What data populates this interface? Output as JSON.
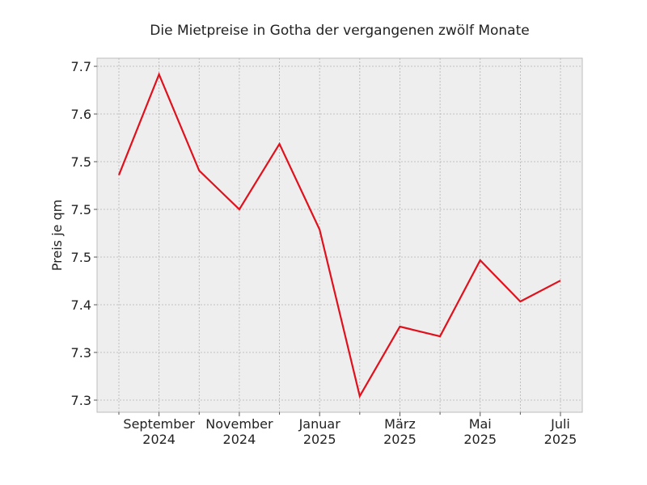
{
  "chart_data": {
    "type": "line",
    "title": "Die Mietpreise in Gotha der vergangenen zwölf Monate",
    "y_label": "Preis je qm",
    "categories": [
      null,
      "September\n2024",
      null,
      "November\n2024",
      null,
      "Januar\n2025",
      null,
      "März\n2025",
      null,
      "Mai\n2025",
      null,
      "Juli\n2025"
    ],
    "series": [
      {
        "name": "Preis je qm",
        "color": "#e0111c",
        "values": [
          7.536,
          7.6415,
          7.5407,
          7.5,
          7.5686,
          7.4788,
          7.3042,
          7.3771,
          7.3669,
          7.4466,
          7.4034,
          7.4254
        ]
      }
    ],
    "ylim": [
      7.2873,
      7.6585
    ],
    "yticks": [
      {
        "value": 7.3,
        "label": "7.3"
      },
      {
        "value": 7.35,
        "label": "7.3"
      },
      {
        "value": 7.4,
        "label": "7.4"
      },
      {
        "value": 7.45,
        "label": "7.5"
      },
      {
        "value": 7.5,
        "label": "7.5"
      },
      {
        "value": 7.55,
        "label": "7.5"
      },
      {
        "value": 7.6,
        "label": "7.6"
      },
      {
        "value": 7.65,
        "label": "7.7"
      }
    ],
    "grid": true
  }
}
